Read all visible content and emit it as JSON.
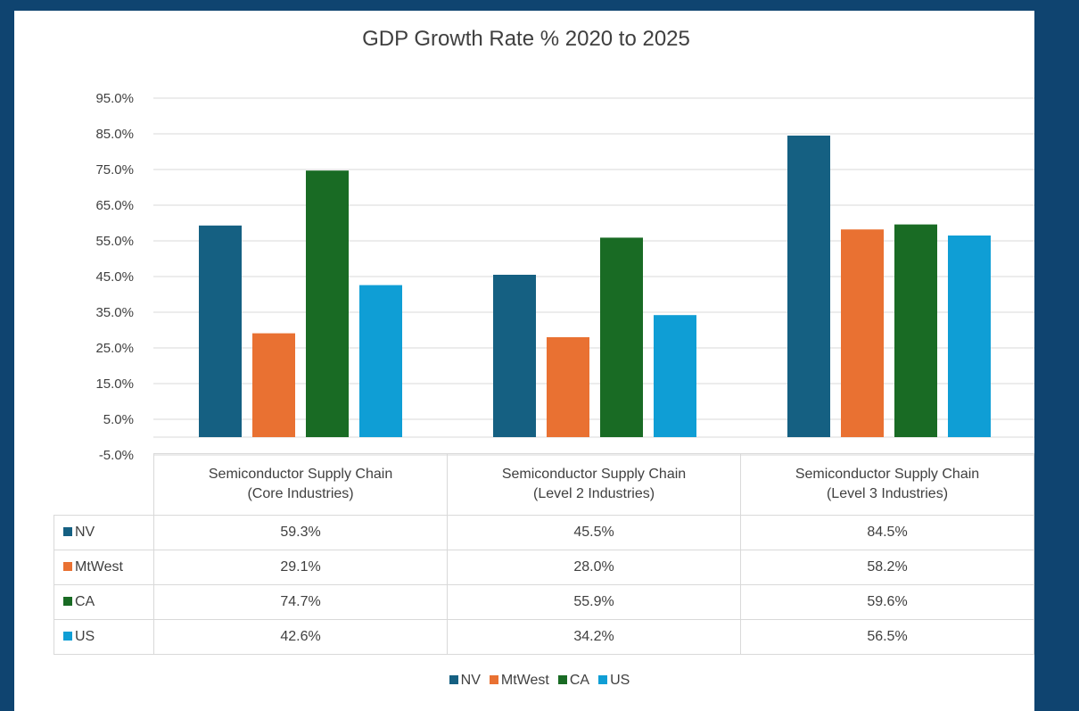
{
  "chart_data": {
    "type": "bar",
    "title": "GDP Growth Rate % 2020 to 2025",
    "categories": [
      [
        "Semiconductor Supply Chain",
        "(Core Industries)"
      ],
      [
        "Semiconductor Supply Chain",
        "(Level 2 Industries)"
      ],
      [
        "Semiconductor Supply Chain",
        "(Level 3 Industries)"
      ]
    ],
    "series": [
      {
        "name": "NV",
        "color": "#156082",
        "values": [
          59.3,
          45.5,
          84.5
        ],
        "labels": [
          "59.3%",
          "45.5%",
          "84.5%"
        ]
      },
      {
        "name": "MtWest",
        "color": "#e97132",
        "values": [
          29.1,
          28.0,
          58.2
        ],
        "labels": [
          "29.1%",
          "28.0%",
          "58.2%"
        ]
      },
      {
        "name": "CA",
        "color": "#196b24",
        "values": [
          74.7,
          55.9,
          59.6
        ],
        "labels": [
          "74.7%",
          "55.9%",
          "59.6%"
        ]
      },
      {
        "name": "US",
        "color": "#0f9ed5",
        "values": [
          42.6,
          34.2,
          56.5
        ],
        "labels": [
          "42.6%",
          "34.2%",
          "56.5%"
        ]
      }
    ],
    "y_ticks": [
      "95.0%",
      "85.0%",
      "75.0%",
      "65.0%",
      "55.0%",
      "45.0%",
      "35.0%",
      "25.0%",
      "15.0%",
      "5.0%",
      "-5.0%"
    ],
    "ylim": [
      -5,
      95
    ],
    "gridlines": true,
    "legend_placement": "bottom",
    "data_table": true
  }
}
